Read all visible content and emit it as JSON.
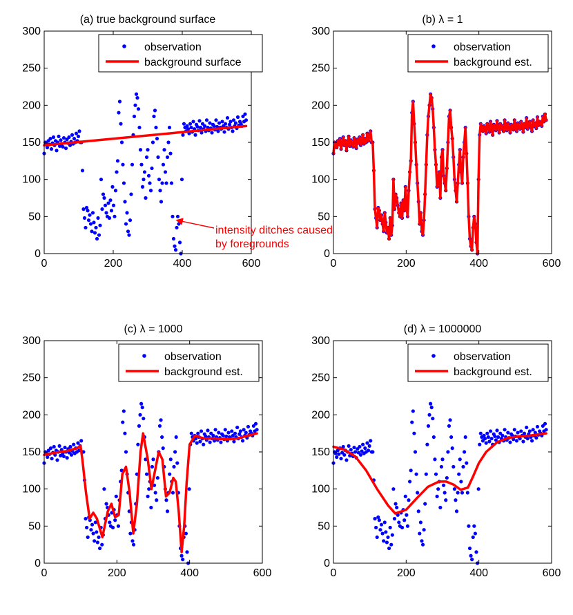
{
  "colors": {
    "observation": "#0000ff",
    "background": "#ff0000",
    "annotation": "#ff0000",
    "axes": "#000000"
  },
  "chart_data": [
    {
      "type": "scatter",
      "title": "(a) true background surface",
      "xlim": [
        0,
        600
      ],
      "ylim": [
        0,
        300
      ],
      "xticks": [
        "0",
        "200",
        "400",
        "600"
      ],
      "yticks": [
        "0",
        "50",
        "100",
        "150",
        "200",
        "250",
        "300"
      ],
      "legend": {
        "placement": "top-right",
        "entries": [
          "observation",
          "background surface"
        ]
      },
      "annotation": {
        "lines": [
          "intensity ditches caused",
          "by foregrounds"
        ],
        "arrow_to": [
          375,
          47
        ]
      },
      "series": [
        {
          "name": "observation",
          "kind": "points",
          "source": "observation"
        },
        {
          "name": "background surface",
          "kind": "line",
          "x": [
            0,
            585
          ],
          "y": [
            146,
            172
          ]
        }
      ]
    },
    {
      "type": "scatter",
      "title": "(b) λ = 1",
      "xlim": [
        0,
        600
      ],
      "ylim": [
        0,
        300
      ],
      "xticks": [
        "0",
        "200",
        "400",
        "600"
      ],
      "yticks": [
        "0",
        "50",
        "100",
        "150",
        "200",
        "250",
        "300"
      ],
      "legend": {
        "placement": "top-right",
        "entries": [
          "observation",
          "background est."
        ]
      },
      "series": [
        {
          "name": "observation",
          "kind": "points",
          "source": "observation"
        },
        {
          "name": "background est.",
          "kind": "line",
          "follows_observation": true
        }
      ]
    },
    {
      "type": "scatter",
      "title": "(c) λ = 1000",
      "xlim": [
        0,
        600
      ],
      "ylim": [
        0,
        300
      ],
      "xticks": [
        "0",
        "200",
        "400",
        "600"
      ],
      "yticks": [
        "0",
        "50",
        "100",
        "150",
        "200",
        "250",
        "300"
      ],
      "legend": {
        "placement": "top-right",
        "entries": [
          "observation",
          "background est."
        ]
      },
      "series": [
        {
          "name": "observation",
          "kind": "points",
          "source": "observation"
        },
        {
          "name": "background est.",
          "kind": "line",
          "x": [
            0,
            30,
            60,
            90,
            100,
            105,
            115,
            125,
            135,
            145,
            160,
            175,
            185,
            195,
            205,
            215,
            225,
            235,
            245,
            255,
            265,
            272,
            285,
            295,
            305,
            315,
            325,
            335,
            345,
            355,
            362,
            370,
            378,
            385,
            392,
            400,
            415,
            440,
            470,
            500,
            530,
            560,
            585
          ],
          "y": [
            146,
            149,
            151,
            155,
            158,
            140,
            95,
            60,
            68,
            60,
            35,
            70,
            80,
            62,
            65,
            120,
            130,
            95,
            40,
            80,
            150,
            175,
            140,
            100,
            125,
            150,
            140,
            90,
            95,
            115,
            110,
            70,
            15,
            50,
            110,
            160,
            172,
            168,
            168,
            167,
            168,
            172,
            175
          ]
        }
      ]
    },
    {
      "type": "scatter",
      "title": "(d) λ = 1000000",
      "xlim": [
        0,
        600
      ],
      "ylim": [
        0,
        300
      ],
      "xticks": [
        "0",
        "200",
        "400",
        "600"
      ],
      "yticks": [
        "0",
        "50",
        "100",
        "150",
        "200",
        "250",
        "300"
      ],
      "legend": {
        "placement": "top-right",
        "entries": [
          "observation",
          "background est."
        ]
      },
      "series": [
        {
          "name": "observation",
          "kind": "points",
          "source": "observation"
        },
        {
          "name": "background est.",
          "kind": "line",
          "x": [
            0,
            30,
            60,
            90,
            120,
            150,
            170,
            200,
            230,
            260,
            290,
            310,
            330,
            350,
            370,
            385,
            400,
            420,
            450,
            480,
            510,
            540,
            570,
            585
          ],
          "y": [
            157,
            153,
            144,
            125,
            100,
            78,
            67,
            72,
            88,
            103,
            110,
            110,
            106,
            99,
            102,
            118,
            135,
            150,
            163,
            169,
            171,
            172,
            174,
            175
          ]
        }
      ]
    }
  ],
  "observation": {
    "x": [
      0,
      3,
      6,
      9,
      12,
      15,
      18,
      21,
      24,
      27,
      30,
      33,
      36,
      39,
      42,
      45,
      48,
      51,
      54,
      57,
      60,
      63,
      66,
      69,
      72,
      75,
      78,
      81,
      84,
      87,
      90,
      93,
      96,
      99,
      102,
      105,
      108,
      111,
      114,
      117,
      120,
      123,
      126,
      129,
      132,
      135,
      138,
      141,
      144,
      147,
      150,
      153,
      156,
      159,
      162,
      165,
      168,
      171,
      174,
      177,
      180,
      183,
      186,
      189,
      192,
      195,
      198,
      201,
      204,
      207,
      210,
      213,
      216,
      219,
      222,
      225,
      228,
      231,
      234,
      237,
      240,
      243,
      246,
      249,
      252,
      255,
      258,
      261,
      264,
      267,
      270,
      273,
      276,
      279,
      282,
      285,
      288,
      291,
      294,
      297,
      300,
      303,
      306,
      309,
      312,
      315,
      318,
      321,
      324,
      327,
      330,
      333,
      336,
      339,
      342,
      345,
      348,
      351,
      354,
      357,
      360,
      363,
      366,
      369,
      372,
      375,
      378,
      381,
      384,
      387,
      390,
      393,
      396,
      399,
      402,
      405,
      408,
      411,
      414,
      417,
      420,
      423,
      426,
      429,
      432,
      435,
      438,
      441,
      444,
      447,
      450,
      453,
      456,
      459,
      462,
      465,
      468,
      471,
      474,
      477,
      480,
      483,
      486,
      489,
      492,
      495,
      498,
      501,
      504,
      507,
      510,
      513,
      516,
      519,
      522,
      525,
      528,
      531,
      534,
      537,
      540,
      543,
      546,
      549,
      552,
      555,
      558,
      561,
      564,
      567,
      570,
      573,
      576,
      579,
      582,
      585
    ],
    "y": [
      135,
      150,
      148,
      143,
      152,
      147,
      155,
      141,
      149,
      157,
      146,
      152,
      139,
      150,
      158,
      145,
      153,
      148,
      144,
      156,
      150,
      142,
      154,
      149,
      157,
      146,
      151,
      160,
      148,
      155,
      150,
      162,
      152,
      158,
      165,
      150,
      150,
      112,
      60,
      48,
      35,
      62,
      58,
      45,
      52,
      40,
      30,
      55,
      42,
      28,
      35,
      20,
      48,
      25,
      38,
      100,
      60,
      80,
      75,
      65,
      55,
      50,
      68,
      48,
      72,
      58,
      90,
      65,
      50,
      85,
      110,
      125,
      190,
      205,
      175,
      150,
      120,
      95,
      70,
      40,
      55,
      30,
      25,
      45,
      80,
      120,
      160,
      185,
      200,
      215,
      210,
      195,
      170,
      140,
      120,
      90,
      100,
      110,
      75,
      130,
      140,
      105,
      95,
      85,
      115,
      150,
      185,
      193,
      170,
      155,
      130,
      100,
      85,
      70,
      95,
      120,
      140,
      110,
      95,
      130,
      150,
      170,
      135,
      95,
      50,
      20,
      10,
      5,
      35,
      50,
      40,
      15,
      0,
      100,
      160,
      175,
      170,
      165,
      172,
      168,
      162,
      175,
      170,
      164,
      178,
      168,
      160,
      174,
      171,
      166,
      179,
      170,
      163,
      175,
      168,
      172,
      165,
      180,
      170,
      166,
      176,
      169,
      163,
      174,
      172,
      167,
      180,
      171,
      165,
      176,
      170,
      168,
      178,
      172,
      164,
      175,
      170,
      183,
      168,
      174,
      178,
      170,
      165,
      180,
      172,
      176,
      169,
      184,
      173,
      178,
      175,
      172,
      185,
      178,
      188,
      180
    ]
  }
}
